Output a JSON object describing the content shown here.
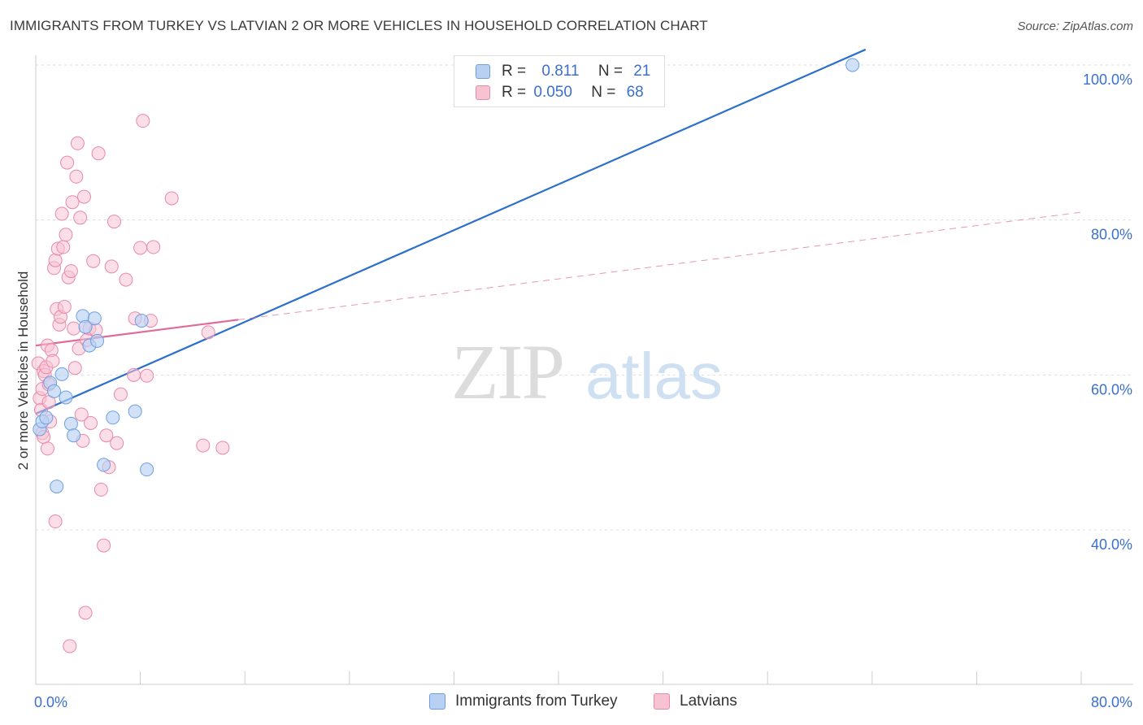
{
  "header": {
    "title": "IMMIGRANTS FROM TURKEY VS LATVIAN 2 OR MORE VEHICLES IN HOUSEHOLD CORRELATION CHART",
    "source": "Source: ZipAtlas.com"
  },
  "watermark": {
    "zip": "ZIP",
    "atlas": "atlas"
  },
  "legend": {
    "rows": [
      {
        "r_label": "R =",
        "r_value": "0.811",
        "n_label": "N =",
        "n_value": "21"
      },
      {
        "r_label": "R =",
        "r_value": "0.050",
        "n_label": "N =",
        "n_value": "68"
      }
    ]
  },
  "colors": {
    "series1_fill": "#b8d1f3",
    "series1_stroke": "#6e9ee0",
    "series1_line": "#2d6fcc",
    "series2_fill": "#f7c3d3",
    "series2_stroke": "#e889a8",
    "series2_line": "#e06b98",
    "grid": "#dddddd",
    "tick_label": "#3b6fcf"
  },
  "chart_data": {
    "type": "scatter",
    "title": "IMMIGRANTS FROM TURKEY VS LATVIAN 2 OR MORE VEHICLES IN HOUSEHOLD CORRELATION CHART",
    "xlabel": "",
    "ylabel": "2 or more Vehicles in Household",
    "xlim": [
      0,
      80
    ],
    "ylim": [
      20,
      102
    ],
    "x_tick_labels": [
      {
        "value": 0,
        "label": "0.0%"
      },
      {
        "value": 80,
        "label": "80.0%"
      }
    ],
    "y_tick_labels": [
      {
        "value": 100,
        "label": "100.0%"
      },
      {
        "value": 80,
        "label": "80.0%"
      },
      {
        "value": 60,
        "label": "60.0%"
      },
      {
        "value": 40,
        "label": "40.0%"
      }
    ],
    "x_minor_ticks": [
      0,
      8,
      16,
      24,
      32,
      40,
      48,
      56,
      64,
      72,
      80
    ],
    "legend_position": "top-center",
    "series": [
      {
        "name": "Immigrants from Turkey",
        "r": 0.811,
        "n": 21,
        "trend": {
          "x0": 0,
          "y0": 55.0,
          "x1": 63.5,
          "y1": 102.0,
          "solid_until": 63.5
        },
        "points": [
          [
            0.3,
            53.0
          ],
          [
            0.5,
            54.0
          ],
          [
            0.8,
            54.5
          ],
          [
            1.1,
            59.0
          ],
          [
            1.4,
            57.9
          ],
          [
            1.6,
            45.6
          ],
          [
            2.0,
            60.1
          ],
          [
            2.3,
            57.1
          ],
          [
            2.7,
            53.7
          ],
          [
            2.9,
            52.2
          ],
          [
            3.6,
            67.6
          ],
          [
            3.8,
            66.2
          ],
          [
            4.1,
            63.8
          ],
          [
            4.5,
            67.3
          ],
          [
            4.7,
            64.4
          ],
          [
            5.2,
            48.4
          ],
          [
            5.9,
            54.5
          ],
          [
            7.6,
            55.3
          ],
          [
            8.1,
            67.0
          ],
          [
            8.5,
            47.8
          ],
          [
            62.5,
            100.0
          ]
        ]
      },
      {
        "name": "Latvians",
        "r": 0.05,
        "n": 68,
        "trend": {
          "x0": 0,
          "y0": 63.8,
          "x1": 80.0,
          "y1": 81.0,
          "solid_until": 15.5
        },
        "points": [
          [
            0.2,
            61.5
          ],
          [
            0.3,
            57.0
          ],
          [
            0.4,
            55.5
          ],
          [
            0.5,
            52.5
          ],
          [
            0.6,
            60.5
          ],
          [
            0.7,
            60.0
          ],
          [
            0.8,
            61.0
          ],
          [
            0.9,
            63.8
          ],
          [
            1.0,
            56.5
          ],
          [
            1.1,
            54.0
          ],
          [
            1.2,
            63.2
          ],
          [
            1.3,
            61.8
          ],
          [
            1.4,
            73.8
          ],
          [
            1.5,
            74.8
          ],
          [
            1.6,
            68.5
          ],
          [
            1.7,
            76.3
          ],
          [
            1.8,
            66.5
          ],
          [
            1.9,
            67.5
          ],
          [
            2.0,
            80.8
          ],
          [
            2.1,
            76.5
          ],
          [
            2.2,
            68.8
          ],
          [
            2.3,
            78.1
          ],
          [
            2.4,
            87.4
          ],
          [
            2.5,
            72.6
          ],
          [
            2.6,
            25.0
          ],
          [
            2.7,
            73.4
          ],
          [
            2.8,
            82.3
          ],
          [
            2.9,
            66.0
          ],
          [
            3.0,
            60.9
          ],
          [
            3.1,
            85.6
          ],
          [
            3.2,
            89.9
          ],
          [
            3.3,
            63.4
          ],
          [
            3.4,
            80.3
          ],
          [
            3.5,
            54.9
          ],
          [
            3.6,
            51.5
          ],
          [
            3.7,
            83.0
          ],
          [
            3.8,
            29.3
          ],
          [
            3.9,
            64.5
          ],
          [
            4.1,
            66.0
          ],
          [
            4.2,
            53.8
          ],
          [
            4.4,
            74.7
          ],
          [
            4.6,
            65.8
          ],
          [
            4.8,
            88.6
          ],
          [
            5.0,
            45.2
          ],
          [
            5.2,
            38.0
          ],
          [
            5.4,
            52.2
          ],
          [
            5.6,
            48.1
          ],
          [
            5.8,
            74.0
          ],
          [
            6.0,
            79.8
          ],
          [
            6.2,
            51.2
          ],
          [
            6.5,
            57.5
          ],
          [
            6.9,
            72.3
          ],
          [
            7.5,
            60.0
          ],
          [
            7.6,
            67.3
          ],
          [
            8.0,
            76.4
          ],
          [
            8.2,
            92.8
          ],
          [
            8.5,
            59.9
          ],
          [
            8.8,
            67.0
          ],
          [
            9.0,
            76.5
          ],
          [
            10.4,
            82.8
          ],
          [
            12.8,
            50.9
          ],
          [
            13.2,
            65.5
          ],
          [
            14.3,
            50.6
          ],
          [
            0.5,
            58.2
          ],
          [
            1.0,
            58.8
          ],
          [
            0.6,
            52.0
          ],
          [
            1.5,
            41.1
          ],
          [
            0.9,
            50.5
          ]
        ]
      }
    ]
  }
}
